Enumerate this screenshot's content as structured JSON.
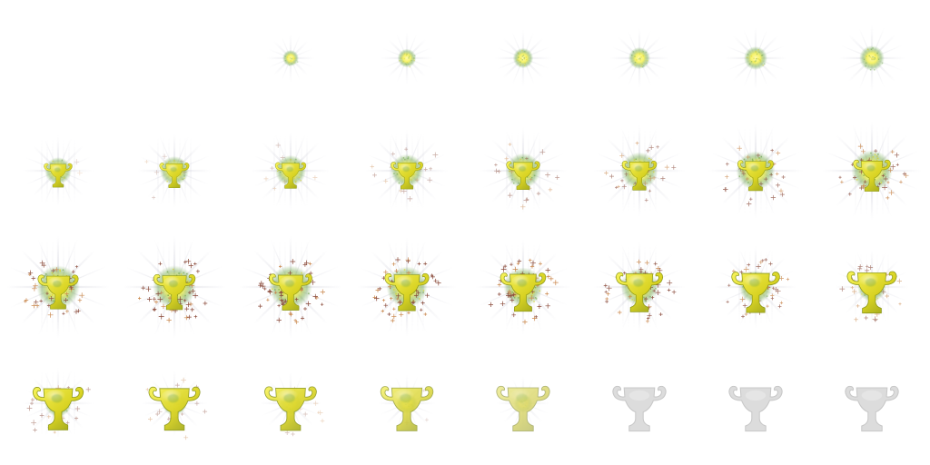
{
  "sprite_sheet": {
    "name": "trophy-sparkle-animation",
    "columns": 8,
    "rows": 4,
    "frame_count": 32,
    "frames": [
      {
        "trophy": 0.0,
        "glow": 0.0,
        "sparkles": 0.0,
        "fade": 0.0
      },
      {
        "trophy": 0.0,
        "glow": 0.0,
        "sparkles": 0.0,
        "fade": 0.0
      },
      {
        "trophy": 0.0,
        "glow": 0.18,
        "sparkles": 0.0,
        "fade": 0.0
      },
      {
        "trophy": 0.0,
        "glow": 0.24,
        "sparkles": 0.0,
        "fade": 0.0
      },
      {
        "trophy": 0.0,
        "glow": 0.28,
        "sparkles": 0.0,
        "fade": 0.0
      },
      {
        "trophy": 0.0,
        "glow": 0.32,
        "sparkles": 0.0,
        "fade": 0.0
      },
      {
        "trophy": 0.0,
        "glow": 0.36,
        "sparkles": 0.0,
        "fade": 0.0
      },
      {
        "trophy": 0.0,
        "glow": 0.4,
        "sparkles": 0.0,
        "fade": 0.0
      },
      {
        "trophy": 0.22,
        "glow": 0.45,
        "sparkles": 0.05,
        "fade": 0.0
      },
      {
        "trophy": 0.26,
        "glow": 0.5,
        "sparkles": 0.1,
        "fade": 0.0
      },
      {
        "trophy": 0.3,
        "glow": 0.55,
        "sparkles": 0.15,
        "fade": 0.0
      },
      {
        "trophy": 0.34,
        "glow": 0.6,
        "sparkles": 0.25,
        "fade": 0.0
      },
      {
        "trophy": 0.38,
        "glow": 0.65,
        "sparkles": 0.35,
        "fade": 0.0
      },
      {
        "trophy": 0.42,
        "glow": 0.7,
        "sparkles": 0.45,
        "fade": 0.0
      },
      {
        "trophy": 0.46,
        "glow": 0.75,
        "sparkles": 0.55,
        "fade": 0.0
      },
      {
        "trophy": 0.5,
        "glow": 0.8,
        "sparkles": 0.65,
        "fade": 0.0
      },
      {
        "trophy": 0.6,
        "glow": 0.85,
        "sparkles": 0.75,
        "fade": 0.0
      },
      {
        "trophy": 0.64,
        "glow": 0.85,
        "sparkles": 0.8,
        "fade": 0.0
      },
      {
        "trophy": 0.68,
        "glow": 0.85,
        "sparkles": 0.85,
        "fade": 0.0
      },
      {
        "trophy": 0.72,
        "glow": 0.8,
        "sparkles": 0.9,
        "fade": 0.0
      },
      {
        "trophy": 0.76,
        "glow": 0.75,
        "sparkles": 0.85,
        "fade": 0.0
      },
      {
        "trophy": 0.8,
        "glow": 0.7,
        "sparkles": 0.75,
        "fade": 0.0
      },
      {
        "trophy": 0.84,
        "glow": 0.6,
        "sparkles": 0.6,
        "fade": 0.0
      },
      {
        "trophy": 0.88,
        "glow": 0.5,
        "sparkles": 0.45,
        "fade": 0.0
      },
      {
        "trophy": 0.92,
        "glow": 0.45,
        "sparkles": 0.35,
        "fade": 0.0
      },
      {
        "trophy": 0.94,
        "glow": 0.4,
        "sparkles": 0.25,
        "fade": 0.05
      },
      {
        "trophy": 0.96,
        "glow": 0.35,
        "sparkles": 0.15,
        "fade": 0.1
      },
      {
        "trophy": 0.98,
        "glow": 0.3,
        "sparkles": 0.05,
        "fade": 0.25
      },
      {
        "trophy": 1.0,
        "glow": 0.25,
        "sparkles": 0.0,
        "fade": 0.5
      },
      {
        "trophy": 1.0,
        "glow": 0.0,
        "sparkles": 0.0,
        "fade": 1.0
      },
      {
        "trophy": 1.0,
        "glow": 0.0,
        "sparkles": 0.0,
        "fade": 1.0
      },
      {
        "trophy": 1.0,
        "glow": 0.0,
        "sparkles": 0.0,
        "fade": 1.0
      }
    ]
  },
  "colors": {
    "background": "#ffffff",
    "gold_light": "#f7f35a",
    "gold": "#d9d323",
    "gold_dark": "#8f9a1c",
    "green_tint": "#6fa64a",
    "glow_core": "#fffbb0",
    "sparkle": "#8a4a3a",
    "ghost": "#dcdcdc",
    "ghost_edge": "#c8c8c8"
  },
  "icons": {
    "trophy": "trophy-icon",
    "sparkle": "sparkle-icon",
    "glow": "light-burst-icon"
  }
}
